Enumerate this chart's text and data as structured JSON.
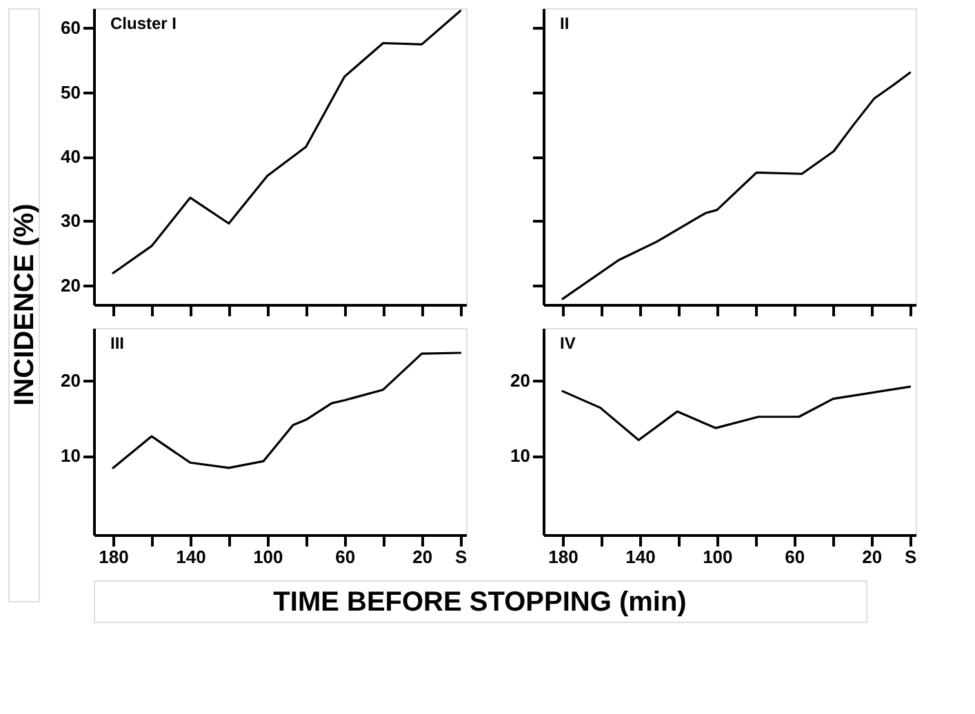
{
  "chart_data": [
    {
      "type": "line",
      "ylabel": "INCIDENCE (%)",
      "annotations": [
        "Cluster I"
      ],
      "tick_labels": "y",
      "x": [
        180,
        160,
        140,
        120,
        100,
        80,
        60,
        40,
        20,
        0
      ],
      "series": [
        {
          "color": "#000000",
          "values": [
            21.9,
            26.1,
            33.6,
            29.6,
            37.0,
            41.5,
            52.4,
            57.6,
            57.4,
            62.6
          ]
        }
      ],
      "xlim": [
        190,
        -3
      ],
      "ylim": [
        17,
        63
      ],
      "xticks": [
        180,
        160,
        140,
        120,
        100,
        80,
        60,
        40,
        20,
        0
      ],
      "yticks": [
        20,
        30,
        40,
        50,
        60
      ],
      "grid": false,
      "legend": false
    },
    {
      "type": "line",
      "annotations": [
        "II"
      ],
      "tick_labels": false,
      "x": [
        180,
        151,
        131,
        106,
        100,
        79.5,
        56,
        39.5,
        29.5,
        18.5,
        8.5,
        0
      ],
      "series": [
        {
          "color": "#000000",
          "values": [
            17.9,
            23.9,
            26.8,
            31.2,
            31.7,
            37.5,
            37.3,
            40.8,
            44.8,
            49.0,
            51.1,
            53.0
          ]
        }
      ],
      "xlim": [
        190,
        -3
      ],
      "ylim": [
        17,
        63
      ],
      "xticks": [
        180,
        160,
        140,
        120,
        100,
        80,
        60,
        40,
        20,
        0
      ],
      "yticks": [
        20,
        30,
        40,
        50,
        60
      ],
      "grid": false,
      "legend": false
    },
    {
      "type": "line",
      "xlabel": "TIME BEFORE STOPPING (min)",
      "annotations": [
        "III"
      ],
      "x": [
        180,
        160,
        140,
        120,
        102,
        86.7,
        80,
        66.7,
        60,
        40,
        20,
        0
      ],
      "series": [
        {
          "color": "#000000",
          "values": [
            8.4,
            12.6,
            9.1,
            8.4,
            9.3,
            14.1,
            14.8,
            17.0,
            17.4,
            18.8,
            23.6,
            23.7
          ]
        }
      ],
      "xlim": [
        190,
        -3
      ],
      "ylim": [
        -0.5,
        27
      ],
      "xticks": [
        {
          "value": 180,
          "label": "180"
        },
        {
          "value": 160,
          "label": null
        },
        {
          "value": 140,
          "label": "140"
        },
        {
          "value": 120,
          "label": null
        },
        {
          "value": 100,
          "label": "100"
        },
        {
          "value": 80,
          "label": null
        },
        {
          "value": 60,
          "label": "60"
        },
        {
          "value": 40,
          "label": null
        },
        {
          "value": 20,
          "label": "20"
        },
        {
          "value": 0,
          "label": "S"
        }
      ],
      "yticks": [
        10,
        20
      ],
      "grid": false,
      "legend": false
    },
    {
      "type": "line",
      "annotations": [
        "IV"
      ],
      "x": [
        180,
        160.5,
        140.6,
        120.6,
        100.7,
        78.5,
        57.5,
        39.8,
        0
      ],
      "series": [
        {
          "color": "#000000",
          "values": [
            18.6,
            16.4,
            12.1,
            15.9,
            13.7,
            15.2,
            15.2,
            17.6,
            19.2
          ]
        }
      ],
      "xlim": [
        190,
        -3
      ],
      "ylim": [
        -0.5,
        27
      ],
      "xticks": [
        {
          "value": 180,
          "label": "180"
        },
        {
          "value": 160,
          "label": null
        },
        {
          "value": 140,
          "label": "140"
        },
        {
          "value": 120,
          "label": null
        },
        {
          "value": 100,
          "label": "100"
        },
        {
          "value": 80,
          "label": null
        },
        {
          "value": 60,
          "label": "60"
        },
        {
          "value": 40,
          "label": null
        },
        {
          "value": 20,
          "label": "20"
        },
        {
          "value": 0,
          "label": "S"
        }
      ],
      "yticks": [
        10,
        20
      ],
      "grid": false,
      "legend": false
    }
  ]
}
